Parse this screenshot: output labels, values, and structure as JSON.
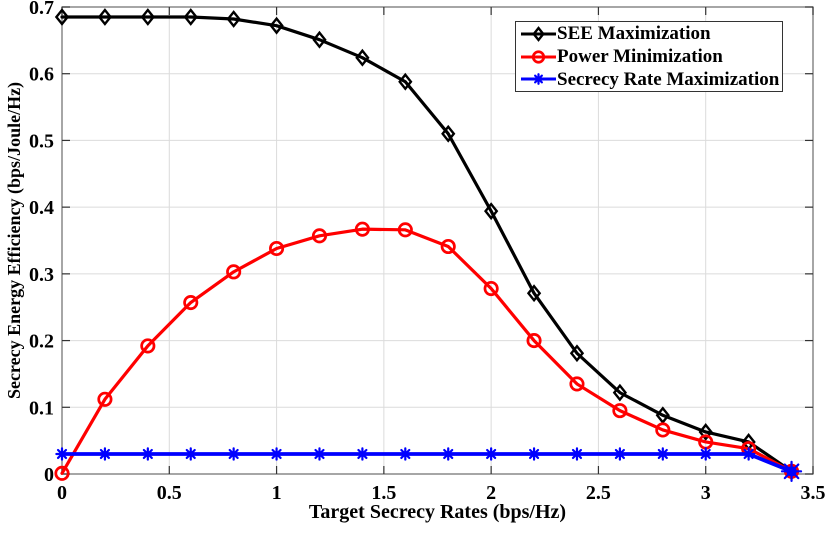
{
  "chart_data": {
    "type": "line",
    "title": "",
    "xlabel": "Target Secrecy Rates (bps/Hz)",
    "ylabel": "Secrecy Energy Efficiency (bps/Joule/Hz)",
    "xlim": [
      0,
      3.5
    ],
    "ylim": [
      0,
      0.7
    ],
    "xticks": [
      "0",
      "0.5",
      "1",
      "1.5",
      "2",
      "2.5",
      "3",
      "3.5"
    ],
    "yticks": [
      "0",
      "0.1",
      "0.2",
      "0.3",
      "0.4",
      "0.5",
      "0.6",
      "0.7"
    ],
    "grid": true,
    "legend_position": "top-right",
    "grid_color": "#dbdbdb",
    "frame_color": "#767676",
    "tick_color": "#333333",
    "text_color": "#000000",
    "background_color": "#ffffff",
    "x": [
      0,
      0.2,
      0.4,
      0.6,
      0.8,
      1.0,
      1.2,
      1.4,
      1.6,
      1.8,
      2.0,
      2.2,
      2.4,
      2.6,
      2.8,
      3.0,
      3.2,
      3.4
    ],
    "series": [
      {
        "name": "SEE Maximization",
        "color": "#000000",
        "marker": "diamond",
        "line_width": 3.2,
        "values": [
          0.685,
          0.685,
          0.685,
          0.685,
          0.682,
          0.672,
          0.651,
          0.624,
          0.588,
          0.51,
          0.394,
          0.271,
          0.181,
          0.122,
          0.088,
          0.063,
          0.048,
          0.004
        ]
      },
      {
        "name": "Power Minimization",
        "color": "#ff0000",
        "marker": "circle",
        "line_width": 3.2,
        "values": [
          0.001,
          0.112,
          0.192,
          0.257,
          0.303,
          0.338,
          0.357,
          0.367,
          0.366,
          0.341,
          0.278,
          0.2,
          0.135,
          0.095,
          0.066,
          0.048,
          0.038,
          0.004
        ]
      },
      {
        "name": "Secrecy Rate Maximization",
        "color": "#0000ff",
        "marker": "asterisk",
        "line_width": 3.8,
        "values": [
          0.03,
          0.03,
          0.03,
          0.03,
          0.03,
          0.03,
          0.03,
          0.03,
          0.03,
          0.03,
          0.03,
          0.03,
          0.03,
          0.03,
          0.03,
          0.03,
          0.03,
          0.004
        ]
      }
    ]
  }
}
